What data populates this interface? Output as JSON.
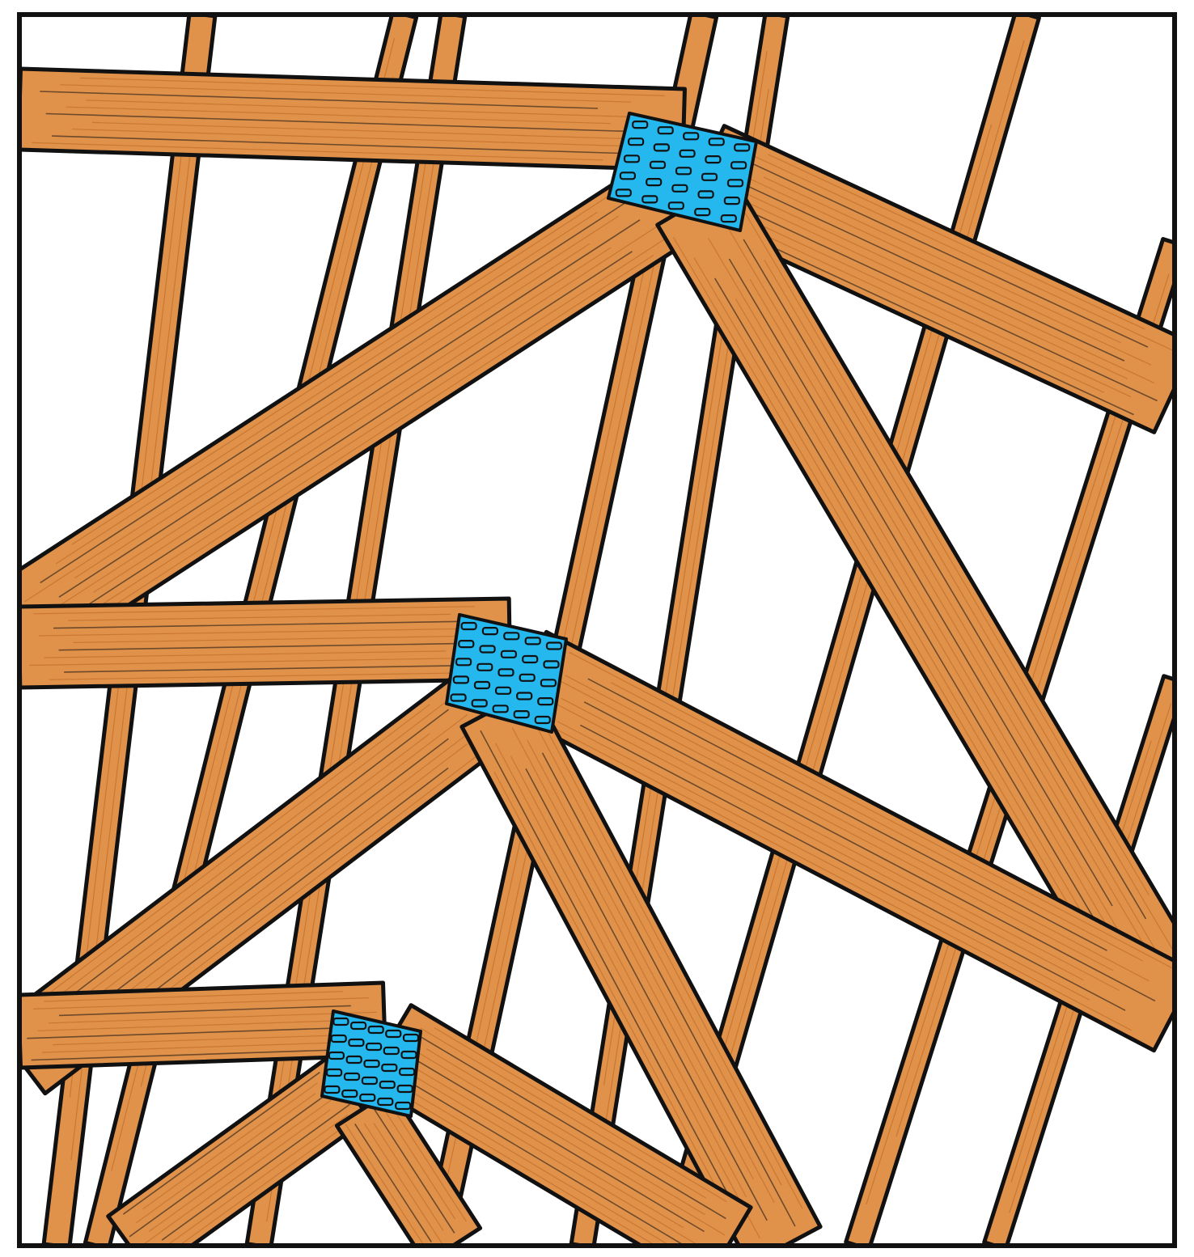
{
  "illustration": {
    "subject": "",
    "colors": {
      "background": "#ffffff",
      "wood": "#e0914a",
      "wood_shadow": "#c8762f",
      "ink": "#111111",
      "plate": "#24b8ee"
    },
    "elements": {
      "beam": "wood-beam",
      "plate": "gusset-plate",
      "frame": "frame-border"
    }
  }
}
